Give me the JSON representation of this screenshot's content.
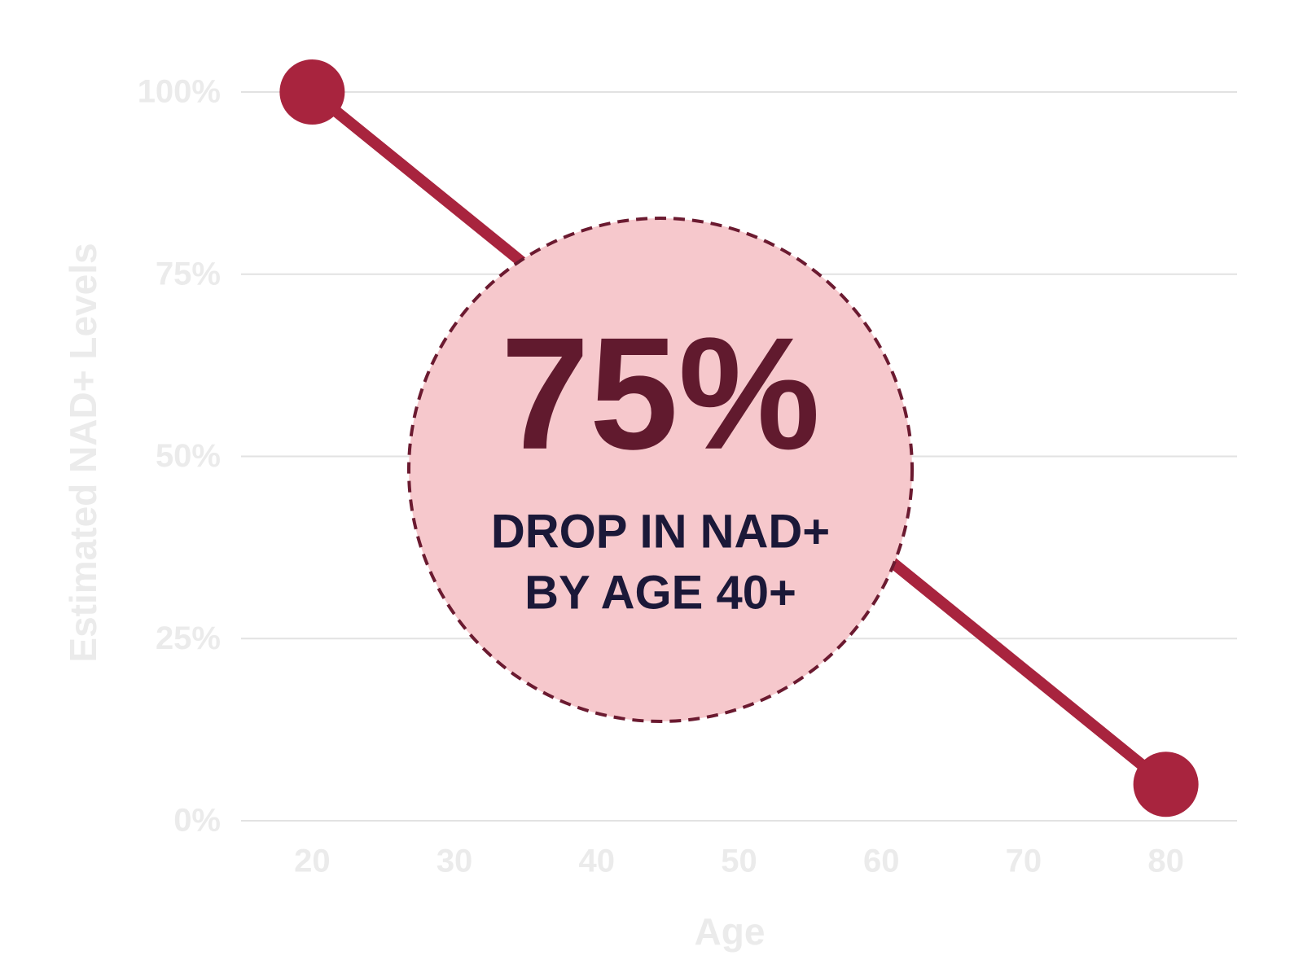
{
  "chart_data": {
    "type": "line",
    "x_label": "Age",
    "y_label": "Estimated NAD+ Levels",
    "x": [
      20,
      80
    ],
    "values": [
      100,
      5
    ],
    "color": "#a8243e",
    "xlim": [
      15,
      85
    ],
    "xticks": [
      20,
      30,
      40,
      50,
      60,
      70,
      80
    ],
    "ylim": [
      0,
      100
    ],
    "yticks": [
      {
        "value": 0,
        "label": "0%"
      },
      {
        "value": 25,
        "label": "25%"
      },
      {
        "value": 50,
        "label": "50%"
      },
      {
        "value": 75,
        "label": "75%"
      },
      {
        "value": 100,
        "label": "100%"
      }
    ],
    "grid": true,
    "annotation": {
      "headline": "75%",
      "lines": [
        "DROP IN NAD+",
        "BY AGE 40+"
      ]
    }
  }
}
